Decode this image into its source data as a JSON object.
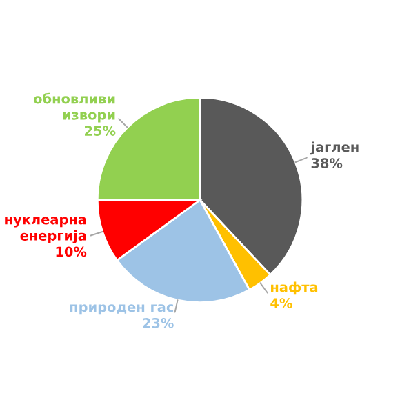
{
  "chart_data": {
    "type": "pie",
    "categories": [
      "јаглен",
      "нафта",
      "природен гас",
      "нуклеарна енергија",
      "обновливи извори"
    ],
    "values": [
      38,
      4,
      23,
      10,
      25
    ],
    "colors": [
      "#595959",
      "#ffc000",
      "#9dc3e6",
      "#ff0000",
      "#92d050"
    ],
    "value_labels": [
      "38%",
      "4%",
      "23%",
      "10%",
      "25%"
    ],
    "legend": false
  }
}
